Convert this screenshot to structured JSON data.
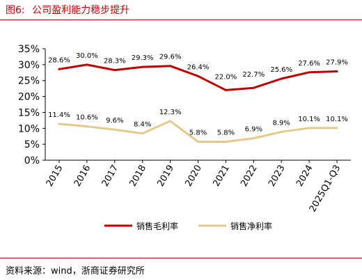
{
  "figure": {
    "number": "图6:",
    "title": "公司盈利能力稳步提升",
    "source": "资料来源：wind，浙商证券研究所"
  },
  "colors": {
    "gross": "#c00000",
    "net": "#e3c98b",
    "title": "#c00000"
  },
  "chart_data": {
    "type": "line",
    "categories": [
      "2015",
      "2016",
      "2017",
      "2018",
      "2019",
      "2020",
      "2021",
      "2022",
      "2023",
      "2024",
      "2025Q1-Q3"
    ],
    "series": [
      {
        "name": "销售毛利率",
        "values": [
          28.6,
          30.0,
          28.3,
          29.3,
          29.6,
          26.4,
          22.0,
          22.7,
          25.6,
          27.6,
          27.9
        ],
        "labels": [
          "28.6%",
          "30.0%",
          "28.3%",
          "29.3%",
          "29.6%",
          "26.4%",
          "22.0%",
          "22.7%",
          "25.6%",
          "27.6%",
          "27.9%"
        ]
      },
      {
        "name": "销售净利率",
        "values": [
          11.4,
          10.6,
          9.6,
          8.4,
          12.3,
          5.8,
          5.8,
          6.9,
          8.9,
          10.1,
          10.1
        ],
        "labels": [
          "11.4%",
          "10.6%",
          "9.6%",
          "8.4%",
          "12.3%",
          "5.8%",
          "5.8%",
          "6.9%",
          "8.9%",
          "10.1%",
          "10.1%"
        ]
      }
    ],
    "y_ticks": [
      "0%",
      "5%",
      "10%",
      "15%",
      "20%",
      "25%",
      "30%",
      "35%"
    ],
    "ylim": [
      0,
      35
    ],
    "grid": false,
    "legend_position": "bottom"
  }
}
